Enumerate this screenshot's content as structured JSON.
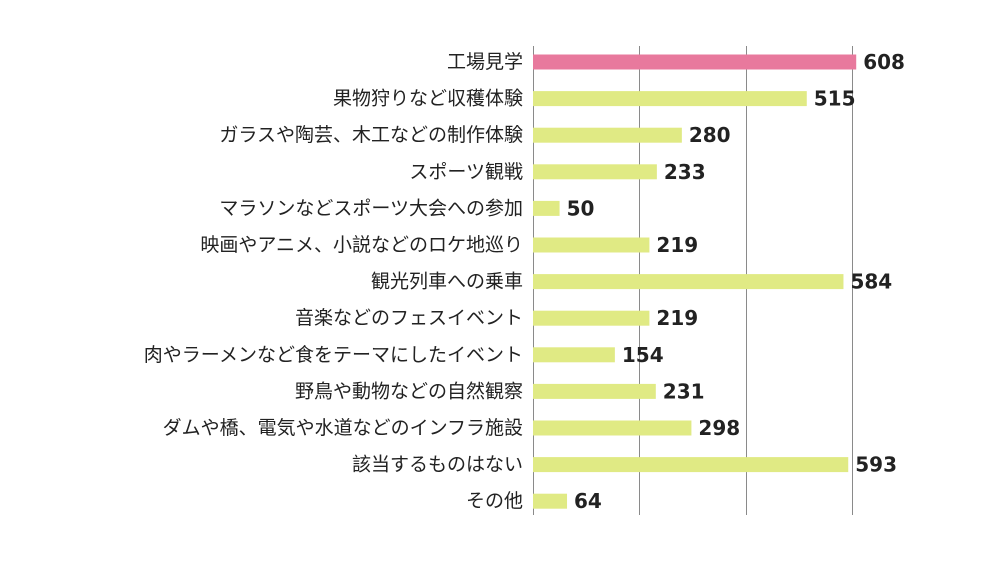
{
  "chart_data": {
    "type": "bar",
    "orientation": "horizontal",
    "title": "",
    "xlabel": "",
    "ylabel": "",
    "xlim": [
      0,
      600
    ],
    "grid_ticks": [
      0,
      200,
      400,
      600
    ],
    "tick_labels_shown": false,
    "legend": "none",
    "categories": [
      "工場見学",
      "果物狩りなど収穫体験",
      "ガラスや陶芸、木工などの制作体験",
      "スポーツ観戦",
      "マラソンなどスポーツ大会への参加",
      "映画やアニメ、小説などのロケ地巡り",
      "観光列車への乗車",
      "音楽などのフェスイベント",
      "肉やラーメンなど食をテーマにしたイベント",
      "野鳥や動物などの自然観察",
      "ダムや橋、電気や水道などのインフラ施設",
      "該当するものはない",
      "その他"
    ],
    "values": [
      608,
      515,
      280,
      233,
      50,
      219,
      584,
      219,
      154,
      231,
      298,
      593,
      64
    ],
    "highlight_index": 0,
    "colors": {
      "highlight": "#e8799d",
      "default": "#e0ea84"
    }
  }
}
